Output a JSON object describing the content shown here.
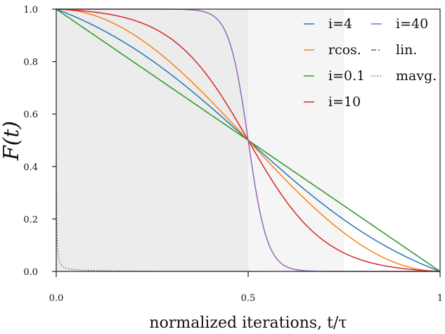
{
  "chart_data": {
    "type": "line",
    "title": "",
    "xlabel": "normalized iterations, t/τ",
    "ylabel": "F(t)",
    "xlim": [
      0,
      1
    ],
    "ylim": [
      0,
      1
    ],
    "xticks": [
      {
        "value": 0,
        "label": "0.0"
      },
      {
        "value": 0.5,
        "label": "0.5"
      },
      {
        "value": 1,
        "label": "1"
      }
    ],
    "yticks": [
      {
        "value": 0,
        "label": "0.0"
      },
      {
        "value": 0.2,
        "label": "0.2"
      },
      {
        "value": 0.4,
        "label": "0.4"
      },
      {
        "value": 0.6,
        "label": "0.6"
      },
      {
        "value": 0.8,
        "label": "0.8"
      },
      {
        "value": 1,
        "label": "1.0"
      }
    ],
    "shaded_regions": [
      {
        "x0": 0,
        "x1": 0.5,
        "color": "#ececec"
      },
      {
        "x0": 0.5,
        "x1": 0.75,
        "color": "#f5f5f5"
      }
    ],
    "legend_position": "top-right",
    "series": [
      {
        "name": "i=4",
        "color": "#1f77b4",
        "style": "solid",
        "kind": "sigmoid",
        "param": 4
      },
      {
        "name": "rcos.",
        "color": "#ff7f0e",
        "style": "solid",
        "kind": "rcos"
      },
      {
        "name": "i=0.1",
        "color": "#2ca02c",
        "style": "solid",
        "kind": "sigmoid",
        "param": 0.1
      },
      {
        "name": "i=10",
        "color": "#d62728",
        "style": "solid",
        "kind": "sigmoid",
        "param": 10
      },
      {
        "name": "i=40",
        "color": "#9467bd",
        "style": "solid",
        "kind": "sigmoid",
        "param": 40
      },
      {
        "name": "lin.",
        "color": "#8c564b",
        "style": "dashdot",
        "kind": "linear"
      },
      {
        "name": "mavg.",
        "color": "#555555",
        "style": "dotted",
        "kind": "mavg"
      }
    ]
  }
}
